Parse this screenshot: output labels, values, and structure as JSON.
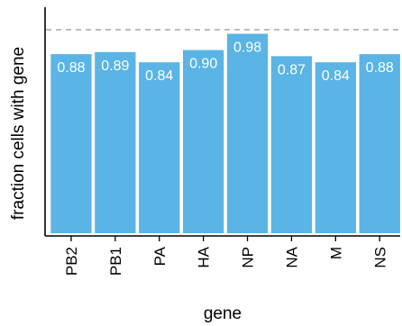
{
  "chart_data": {
    "type": "bar",
    "title": "",
    "xlabel": "gene",
    "ylabel": "fraction cells with gene",
    "categories": [
      "PB2",
      "PB1",
      "PA",
      "HA",
      "NP",
      "NA",
      "M",
      "NS"
    ],
    "values": [
      0.88,
      0.89,
      0.84,
      0.9,
      0.98,
      0.87,
      0.84,
      0.88
    ],
    "value_labels": [
      "0.88",
      "0.89",
      "0.84",
      "0.90",
      "0.98",
      "0.87",
      "0.84",
      "0.88"
    ],
    "ylim": [
      0,
      1.0
    ],
    "reference_line": 1.0,
    "grid": false,
    "legend": "none",
    "colors": {
      "bar": "#5ab4e5",
      "reference_line": "#a6a6a6",
      "bar_label": "#ffffff"
    }
  }
}
